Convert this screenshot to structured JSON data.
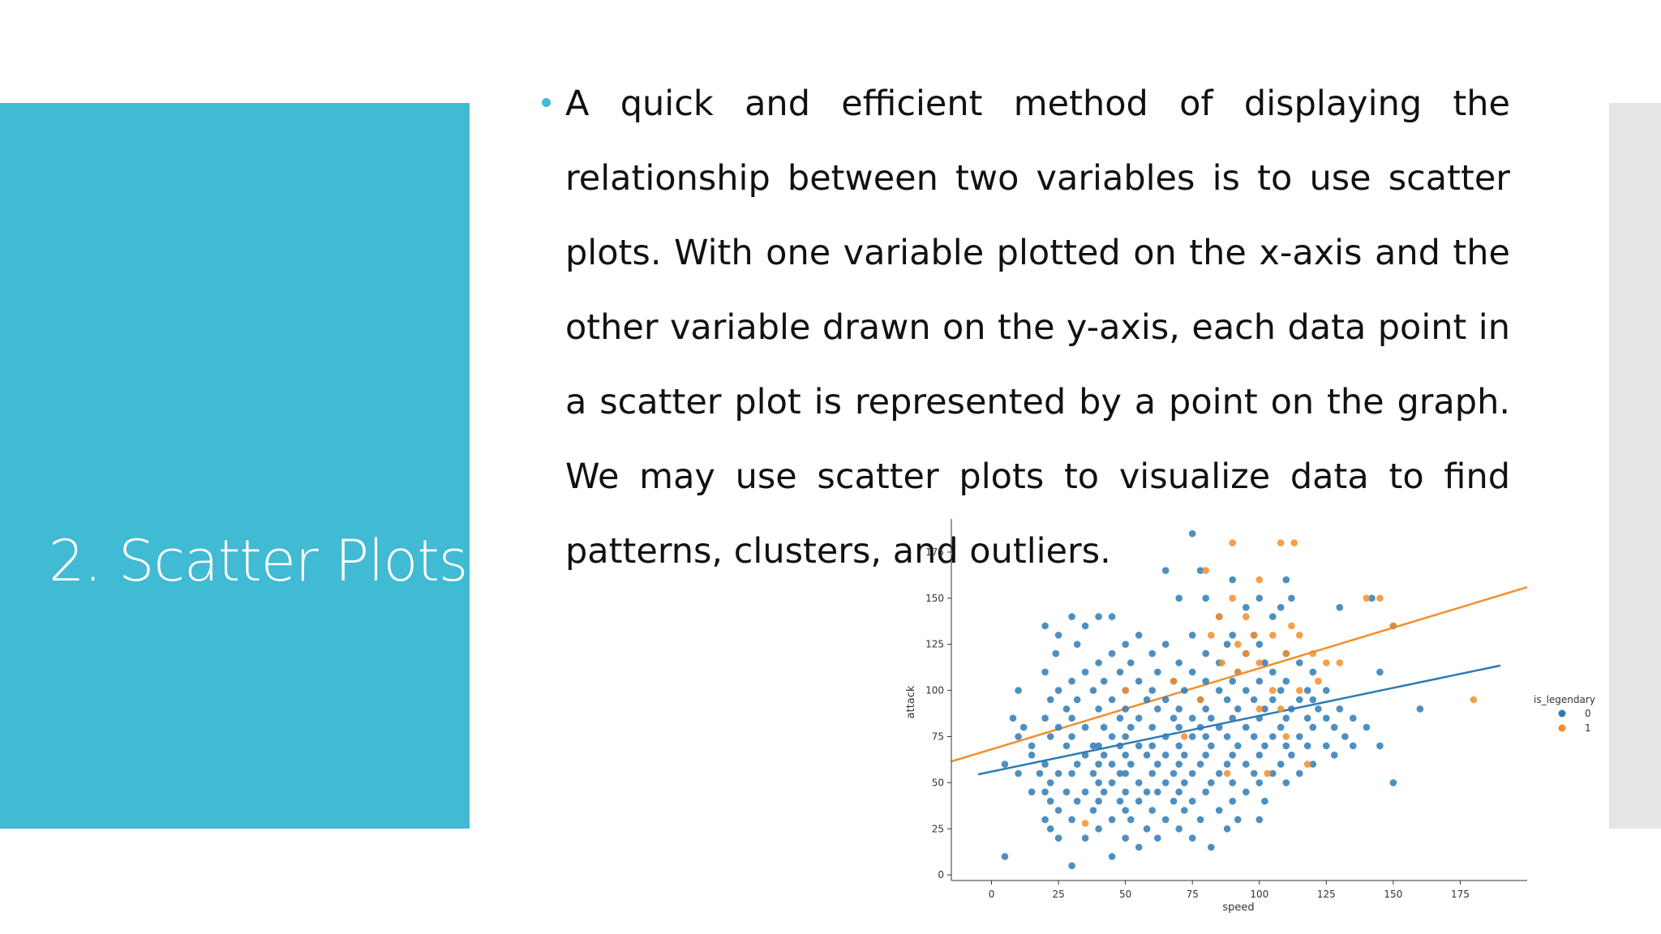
{
  "slide": {
    "title": "2. Scatter Plots",
    "bullet_text": "A quick and efficient method of displaying the relationship between two variables is to use scatter plots. With one variable plotted on the x-axis and the other variable drawn on the y-axis, each data point in a scatter plot is represented by a point on the graph. We may use scatter plots to visualize data to find patterns, clusters, and outliers.",
    "colors": {
      "accent": "#41bad3",
      "side_bar": "#e6e6e6"
    }
  },
  "chart_data": {
    "type": "scatter",
    "xlabel": "speed",
    "ylabel": "attack",
    "xlim": [
      -15,
      200
    ],
    "ylim": [
      -3,
      193
    ],
    "xticks": [
      0,
      25,
      50,
      75,
      100,
      125,
      150,
      175
    ],
    "yticks": [
      0,
      25,
      50,
      75,
      100,
      125,
      150,
      175
    ],
    "grid": false,
    "legend": {
      "title": "is_legendary",
      "placement": "right",
      "entries": [
        "0",
        "1"
      ]
    },
    "series": [
      {
        "name": "0",
        "color": "#2f7bb5",
        "points": [
          [
            5,
            10
          ],
          [
            5,
            60
          ],
          [
            8,
            85
          ],
          [
            10,
            100
          ],
          [
            10,
            75
          ],
          [
            10,
            55
          ],
          [
            12,
            80
          ],
          [
            15,
            65
          ],
          [
            15,
            45
          ],
          [
            15,
            70
          ],
          [
            18,
            55
          ],
          [
            20,
            30
          ],
          [
            20,
            45
          ],
          [
            20,
            60
          ],
          [
            20,
            85
          ],
          [
            20,
            110
          ],
          [
            20,
            135
          ],
          [
            22,
            25
          ],
          [
            22,
            40
          ],
          [
            22,
            50
          ],
          [
            22,
            75
          ],
          [
            22,
            95
          ],
          [
            24,
            120
          ],
          [
            25,
            20
          ],
          [
            25,
            35
          ],
          [
            25,
            55
          ],
          [
            25,
            80
          ],
          [
            25,
            100
          ],
          [
            25,
            130
          ],
          [
            28,
            45
          ],
          [
            28,
            70
          ],
          [
            28,
            90
          ],
          [
            30,
            5
          ],
          [
            30,
            30
          ],
          [
            30,
            55
          ],
          [
            30,
            75
          ],
          [
            30,
            85
          ],
          [
            30,
            105
          ],
          [
            30,
            140
          ],
          [
            32,
            40
          ],
          [
            32,
            60
          ],
          [
            32,
            95
          ],
          [
            32,
            125
          ],
          [
            35,
            20
          ],
          [
            35,
            45
          ],
          [
            35,
            65
          ],
          [
            35,
            80
          ],
          [
            35,
            110
          ],
          [
            35,
            135
          ],
          [
            38,
            35
          ],
          [
            38,
            55
          ],
          [
            38,
            70
          ],
          [
            38,
            100
          ],
          [
            40,
            25
          ],
          [
            40,
            40
          ],
          [
            40,
            50
          ],
          [
            40,
            60
          ],
          [
            40,
            70
          ],
          [
            40,
            90
          ],
          [
            40,
            115
          ],
          [
            40,
            140
          ],
          [
            42,
            45
          ],
          [
            42,
            65
          ],
          [
            42,
            80
          ],
          [
            42,
            105
          ],
          [
            45,
            10
          ],
          [
            45,
            30
          ],
          [
            45,
            50
          ],
          [
            45,
            60
          ],
          [
            45,
            75
          ],
          [
            45,
            95
          ],
          [
            45,
            120
          ],
          [
            45,
            140
          ],
          [
            48,
            40
          ],
          [
            48,
            55
          ],
          [
            48,
            70
          ],
          [
            48,
            85
          ],
          [
            48,
            110
          ],
          [
            50,
            20
          ],
          [
            50,
            35
          ],
          [
            50,
            45
          ],
          [
            50,
            55
          ],
          [
            50,
            65
          ],
          [
            50,
            75
          ],
          [
            50,
            90
          ],
          [
            50,
            100
          ],
          [
            50,
            125
          ],
          [
            52,
            30
          ],
          [
            52,
            60
          ],
          [
            52,
            80
          ],
          [
            52,
            115
          ],
          [
            55,
            15
          ],
          [
            55,
            40
          ],
          [
            55,
            50
          ],
          [
            55,
            70
          ],
          [
            55,
            85
          ],
          [
            55,
            105
          ],
          [
            55,
            130
          ],
          [
            58,
            25
          ],
          [
            58,
            45
          ],
          [
            58,
            65
          ],
          [
            58,
            95
          ],
          [
            60,
            35
          ],
          [
            60,
            55
          ],
          [
            60,
            70
          ],
          [
            60,
            80
          ],
          [
            60,
            100
          ],
          [
            60,
            120
          ],
          [
            62,
            20
          ],
          [
            62,
            45
          ],
          [
            62,
            60
          ],
          [
            62,
            90
          ],
          [
            62,
            110
          ],
          [
            65,
            30
          ],
          [
            65,
            50
          ],
          [
            65,
            65
          ],
          [
            65,
            75
          ],
          [
            65,
            95
          ],
          [
            65,
            125
          ],
          [
            65,
            165
          ],
          [
            68,
            40
          ],
          [
            68,
            55
          ],
          [
            68,
            85
          ],
          [
            68,
            105
          ],
          [
            70,
            25
          ],
          [
            70,
            45
          ],
          [
            70,
            60
          ],
          [
            70,
            70
          ],
          [
            70,
            80
          ],
          [
            70,
            90
          ],
          [
            70,
            115
          ],
          [
            70,
            150
          ],
          [
            72,
            35
          ],
          [
            72,
            50
          ],
          [
            72,
            65
          ],
          [
            72,
            100
          ],
          [
            75,
            20
          ],
          [
            75,
            40
          ],
          [
            75,
            55
          ],
          [
            75,
            75
          ],
          [
            75,
            85
          ],
          [
            75,
            110
          ],
          [
            75,
            130
          ],
          [
            75,
            185
          ],
          [
            78,
            30
          ],
          [
            78,
            60
          ],
          [
            78,
            80
          ],
          [
            78,
            95
          ],
          [
            78,
            165
          ],
          [
            80,
            45
          ],
          [
            80,
            65
          ],
          [
            80,
            75
          ],
          [
            80,
            90
          ],
          [
            80,
            105
          ],
          [
            80,
            120
          ],
          [
            80,
            150
          ],
          [
            82,
            15
          ],
          [
            82,
            50
          ],
          [
            82,
            70
          ],
          [
            82,
            85
          ],
          [
            85,
            35
          ],
          [
            85,
            55
          ],
          [
            85,
            80
          ],
          [
            85,
            100
          ],
          [
            85,
            115
          ],
          [
            85,
            140
          ],
          [
            88,
            25
          ],
          [
            88,
            60
          ],
          [
            88,
            75
          ],
          [
            88,
            95
          ],
          [
            88,
            125
          ],
          [
            90,
            40
          ],
          [
            90,
            50
          ],
          [
            90,
            65
          ],
          [
            90,
            85
          ],
          [
            90,
            105
          ],
          [
            90,
            130
          ],
          [
            90,
            160
          ],
          [
            92,
            30
          ],
          [
            92,
            70
          ],
          [
            92,
            90
          ],
          [
            92,
            110
          ],
          [
            95,
            45
          ],
          [
            95,
            60
          ],
          [
            95,
            80
          ],
          [
            95,
            100
          ],
          [
            95,
            120
          ],
          [
            95,
            145
          ],
          [
            98,
            55
          ],
          [
            98,
            75
          ],
          [
            98,
            95
          ],
          [
            98,
            130
          ],
          [
            100,
            30
          ],
          [
            100,
            50
          ],
          [
            100,
            65
          ],
          [
            100,
            85
          ],
          [
            100,
            105
          ],
          [
            100,
            125
          ],
          [
            100,
            150
          ],
          [
            102,
            40
          ],
          [
            102,
            70
          ],
          [
            102,
            90
          ],
          [
            102,
            115
          ],
          [
            105,
            55
          ],
          [
            105,
            75
          ],
          [
            105,
            95
          ],
          [
            105,
            110
          ],
          [
            105,
            140
          ],
          [
            108,
            60
          ],
          [
            108,
            80
          ],
          [
            108,
            100
          ],
          [
            108,
            145
          ],
          [
            110,
            50
          ],
          [
            110,
            70
          ],
          [
            110,
            85
          ],
          [
            110,
            105
          ],
          [
            110,
            120
          ],
          [
            110,
            160
          ],
          [
            112,
            65
          ],
          [
            112,
            90
          ],
          [
            112,
            150
          ],
          [
            115,
            55
          ],
          [
            115,
            75
          ],
          [
            115,
            95
          ],
          [
            115,
            115
          ],
          [
            118,
            70
          ],
          [
            118,
            85
          ],
          [
            118,
            100
          ],
          [
            120,
            60
          ],
          [
            120,
            80
          ],
          [
            120,
            95
          ],
          [
            120,
            110
          ],
          [
            122,
            90
          ],
          [
            125,
            70
          ],
          [
            125,
            85
          ],
          [
            125,
            100
          ],
          [
            128,
            65
          ],
          [
            128,
            80
          ],
          [
            130,
            90
          ],
          [
            130,
            145
          ],
          [
            132,
            75
          ],
          [
            135,
            70
          ],
          [
            135,
            85
          ],
          [
            140,
            80
          ],
          [
            142,
            150
          ],
          [
            145,
            70
          ],
          [
            145,
            110
          ],
          [
            150,
            50
          ],
          [
            150,
            135
          ],
          [
            160,
            90
          ]
        ]
      },
      {
        "name": "1",
        "color": "#f28e2b",
        "points": [
          [
            35,
            28
          ],
          [
            50,
            100
          ],
          [
            68,
            105
          ],
          [
            72,
            75
          ],
          [
            78,
            95
          ],
          [
            80,
            165
          ],
          [
            82,
            130
          ],
          [
            85,
            140
          ],
          [
            86,
            115
          ],
          [
            88,
            55
          ],
          [
            90,
            180
          ],
          [
            90,
            150
          ],
          [
            92,
            110
          ],
          [
            92,
            125
          ],
          [
            95,
            120
          ],
          [
            95,
            140
          ],
          [
            98,
            130
          ],
          [
            100,
            160
          ],
          [
            100,
            115
          ],
          [
            100,
            90
          ],
          [
            103,
            55
          ],
          [
            105,
            100
          ],
          [
            105,
            130
          ],
          [
            108,
            180
          ],
          [
            108,
            90
          ],
          [
            110,
            120
          ],
          [
            110,
            75
          ],
          [
            112,
            135
          ],
          [
            113,
            180
          ],
          [
            115,
            130
          ],
          [
            115,
            100
          ],
          [
            118,
            60
          ],
          [
            120,
            120
          ],
          [
            122,
            105
          ],
          [
            125,
            115
          ],
          [
            130,
            115
          ],
          [
            140,
            150
          ],
          [
            145,
            150
          ],
          [
            150,
            135
          ],
          [
            180,
            95
          ]
        ]
      }
    ],
    "regression_lines": [
      {
        "name": "0",
        "color": "#2f7bb5",
        "x": [
          -5,
          190
        ],
        "y": [
          54.5,
          113.5
        ]
      },
      {
        "name": "1",
        "color": "#f28e2b",
        "x": [
          -15,
          200
        ],
        "y": [
          61.5,
          156
        ]
      }
    ]
  }
}
